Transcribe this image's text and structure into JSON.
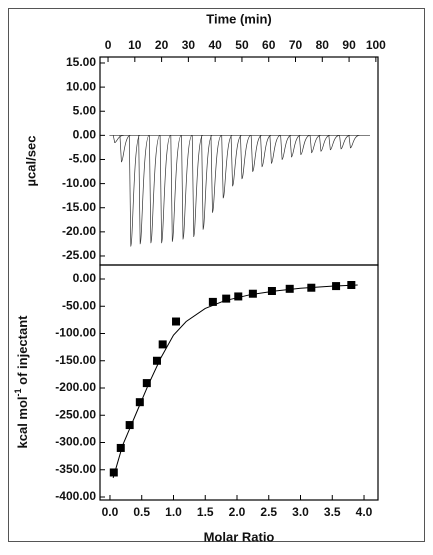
{
  "chart_data": [
    {
      "type": "thermogram",
      "xlabel": "Time (min)",
      "ylabel": "µcal/sec",
      "xlim": [
        -3,
        100.8
      ],
      "ylim": [
        -26.87,
        16.24
      ],
      "xticks": [
        0,
        10,
        20,
        30,
        40,
        50,
        60,
        70,
        80,
        90,
        100
      ],
      "yticks": [
        {
          "value": 15,
          "label": "15.00"
        },
        {
          "value": 10,
          "label": "10.00"
        },
        {
          "value": 5,
          "label": "5.00"
        },
        {
          "value": 0,
          "label": "0.00"
        },
        {
          "value": -5,
          "label": "-5.00"
        },
        {
          "value": -10,
          "label": "-10.00"
        },
        {
          "value": -15,
          "label": "-15.00"
        },
        {
          "value": -20,
          "label": "-20.00"
        },
        {
          "value": -25,
          "label": "-25.00"
        }
      ],
      "color": "#333333",
      "x": [
        2.5,
        5,
        8.5,
        12,
        16,
        20,
        24,
        28,
        32,
        35.5,
        39,
        43,
        46.5,
        50,
        54,
        57.5,
        61,
        65,
        68.5,
        72,
        76,
        79.5,
        83,
        87,
        90.5
      ],
      "values": [
        -1.5,
        -5.5,
        -23,
        -22.5,
        -22.3,
        -22.3,
        -22,
        -21.5,
        -21,
        -19.5,
        -16,
        -13,
        -10.5,
        -9,
        -7.5,
        -6.5,
        -5.8,
        -5,
        -4.5,
        -4,
        -3.6,
        -3.3,
        -3,
        -2.8,
        -2.6
      ]
    },
    {
      "type": "scatter",
      "xlabel": "Molar Ratio",
      "ylabel": {
        "text": "kcal mol",
        "sup": "-1",
        "rest": " of injectant"
      },
      "xlim": [
        -0.157,
        4.22
      ],
      "ylim": [
        -405.5,
        25.7
      ],
      "xticks": [
        {
          "value": 0,
          "label": "0.0"
        },
        {
          "value": 0.5,
          "label": "0.5"
        },
        {
          "value": 1,
          "label": "1.0"
        },
        {
          "value": 1.5,
          "label": "1.5"
        },
        {
          "value": 2,
          "label": "2.0"
        },
        {
          "value": 2.5,
          "label": "2.5"
        },
        {
          "value": 3,
          "label": "3.0"
        },
        {
          "value": 3.5,
          "label": "3.5"
        },
        {
          "value": 4,
          "label": "4.0"
        }
      ],
      "yticks": [
        {
          "value": 0,
          "label": "0.00"
        },
        {
          "value": -50,
          "label": "-50.00"
        },
        {
          "value": -100,
          "label": "-100.00"
        },
        {
          "value": -150,
          "label": "-150.00"
        },
        {
          "value": -200,
          "label": "-200.00"
        },
        {
          "value": -250,
          "label": "-250.00"
        },
        {
          "value": -300,
          "label": "-300.00"
        },
        {
          "value": -350,
          "label": "-350.00"
        },
        {
          "value": -400,
          "label": "-400.00"
        }
      ],
      "series": [
        {
          "kind": "markers",
          "color": "#000000",
          "x": [
            0.06,
            0.17,
            0.31,
            0.47,
            0.58,
            0.74,
            0.83,
            1.04,
            1.62,
            1.83,
            2.02,
            2.25,
            2.55,
            2.83,
            3.17,
            3.56,
            3.8
          ],
          "values": [
            -355,
            -310,
            -268,
            -226,
            -191,
            -150,
            -120,
            -78,
            -42,
            -36,
            -32,
            -27,
            -22,
            -18,
            -16,
            -13,
            -11
          ]
        },
        {
          "kind": "line",
          "color": "#000000",
          "x": [
            0.05,
            0.2,
            0.4,
            0.6,
            0.8,
            1.0,
            1.2,
            1.5,
            1.8,
            2.2,
            2.6,
            3.0,
            3.5,
            3.9
          ],
          "values": [
            -365,
            -305,
            -250,
            -195,
            -145,
            -103,
            -78,
            -54,
            -40,
            -29,
            -22,
            -17,
            -13,
            -11
          ]
        }
      ]
    }
  ]
}
